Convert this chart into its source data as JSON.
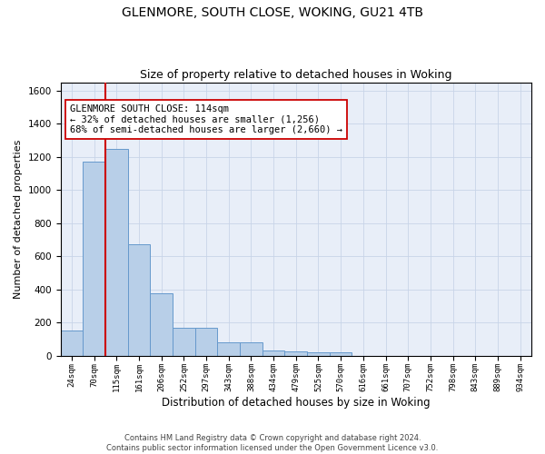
{
  "title": "GLENMORE, SOUTH CLOSE, WOKING, GU21 4TB",
  "subtitle": "Size of property relative to detached houses in Woking",
  "xlabel": "Distribution of detached houses by size in Woking",
  "ylabel": "Number of detached properties",
  "categories": [
    "24sqm",
    "70sqm",
    "115sqm",
    "161sqm",
    "206sqm",
    "252sqm",
    "297sqm",
    "343sqm",
    "388sqm",
    "434sqm",
    "479sqm",
    "525sqm",
    "570sqm",
    "616sqm",
    "661sqm",
    "707sqm",
    "752sqm",
    "798sqm",
    "843sqm",
    "889sqm",
    "934sqm"
  ],
  "values": [
    150,
    1170,
    1250,
    670,
    375,
    170,
    165,
    80,
    80,
    30,
    25,
    20,
    20,
    0,
    0,
    0,
    0,
    0,
    0,
    0,
    0
  ],
  "bar_color": "#b8cfe8",
  "bar_edge_color": "#6699cc",
  "vline_color": "#cc0000",
  "annotation_text": "GLENMORE SOUTH CLOSE: 114sqm\n← 32% of detached houses are smaller (1,256)\n68% of semi-detached houses are larger (2,660) →",
  "annotation_box_color": "#ffffff",
  "annotation_box_edge": "#cc0000",
  "ylim": [
    0,
    1650
  ],
  "yticks": [
    0,
    200,
    400,
    600,
    800,
    1000,
    1200,
    1400,
    1600
  ],
  "grid_color": "#c8d4e8",
  "background_color": "#e8eef8",
  "footer": "Contains HM Land Registry data © Crown copyright and database right 2024.\nContains public sector information licensed under the Open Government Licence v3.0.",
  "title_fontsize": 10,
  "subtitle_fontsize": 9,
  "xlabel_fontsize": 8.5,
  "ylabel_fontsize": 8,
  "annot_fontsize": 7.5
}
